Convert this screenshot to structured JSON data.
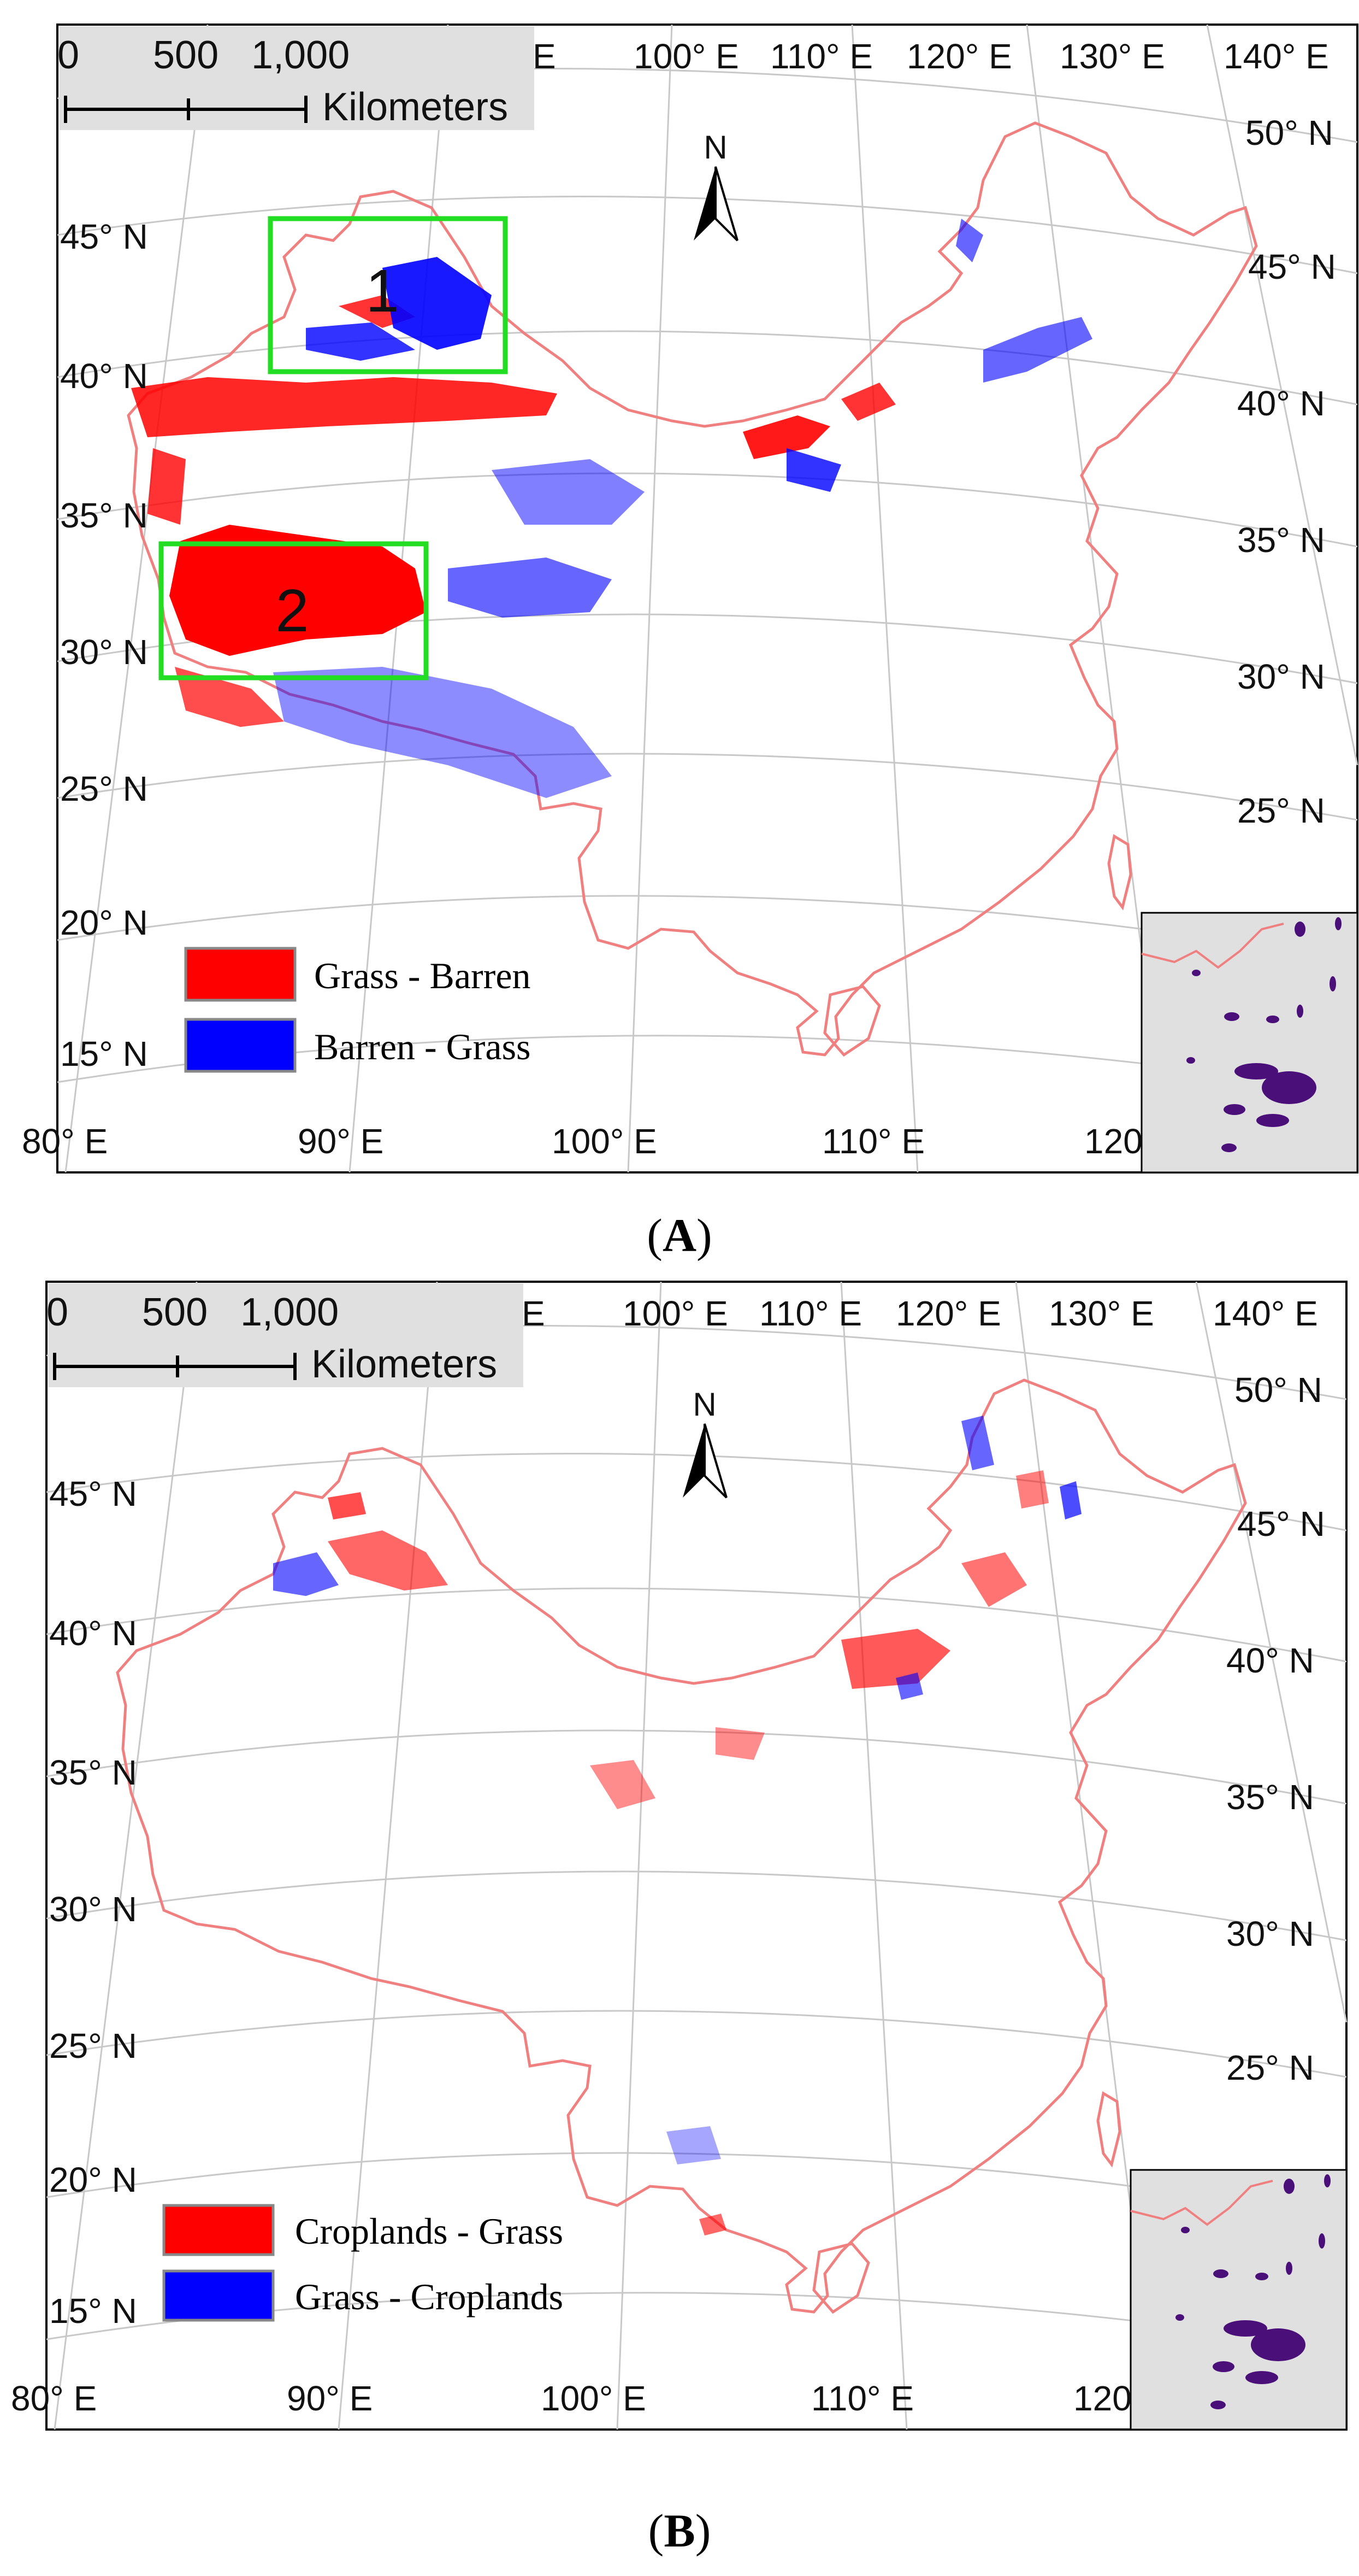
{
  "panels": [
    {
      "id": "A",
      "caption_letter": "A",
      "scale_bar": {
        "ticks": [
          "0",
          "500",
          "1,000"
        ],
        "unit": "Kilometers"
      },
      "north_label": "N",
      "top_lon_labels": [
        "E",
        "100° E",
        "110° E",
        "120° E",
        "130° E",
        "140° E"
      ],
      "bottom_lon_labels": [
        "80° E",
        "90° E",
        "100° E",
        "110° E",
        "120"
      ],
      "left_lat_labels": [
        "45° N",
        "40° N",
        "35° N",
        "30° N",
        "25° N",
        "20° N",
        "15° N"
      ],
      "right_lat_labels": [
        "50° N",
        "45° N",
        "40° N",
        "35° N",
        "30° N",
        "25° N"
      ],
      "legend": [
        {
          "label": "Grass - Barren",
          "color": "#ff0000"
        },
        {
          "label": "Barren - Grass",
          "color": "#0000ff"
        }
      ],
      "boxes": [
        {
          "label": "1",
          "color": "#22dd22"
        },
        {
          "label": "2",
          "color": "#22dd22"
        }
      ]
    },
    {
      "id": "B",
      "caption_letter": "B",
      "scale_bar": {
        "ticks": [
          "0",
          "500",
          "1,000"
        ],
        "unit": "Kilometers"
      },
      "north_label": "N",
      "top_lon_labels": [
        "E",
        "100° E",
        "110° E",
        "120° E",
        "130° E",
        "140° E"
      ],
      "bottom_lon_labels": [
        "80° E",
        "90° E",
        "100° E",
        "110° E",
        "120"
      ],
      "left_lat_labels": [
        "45° N",
        "40° N",
        "35° N",
        "30° N",
        "25° N",
        "20° N",
        "15° N"
      ],
      "right_lat_labels": [
        "50° N",
        "45° N",
        "40° N",
        "35° N",
        "30° N",
        "25° N"
      ],
      "legend": [
        {
          "label": "Croplands - Grass",
          "color": "#ff0000"
        },
        {
          "label": "Grass - Croplands",
          "color": "#0000ff"
        }
      ]
    }
  ],
  "colors": {
    "border": "#f08080",
    "graticule": "#c8c8c8",
    "inset_bg": "#e0e0e0",
    "islands": "#4b0f7a",
    "box": "#22dd22"
  }
}
